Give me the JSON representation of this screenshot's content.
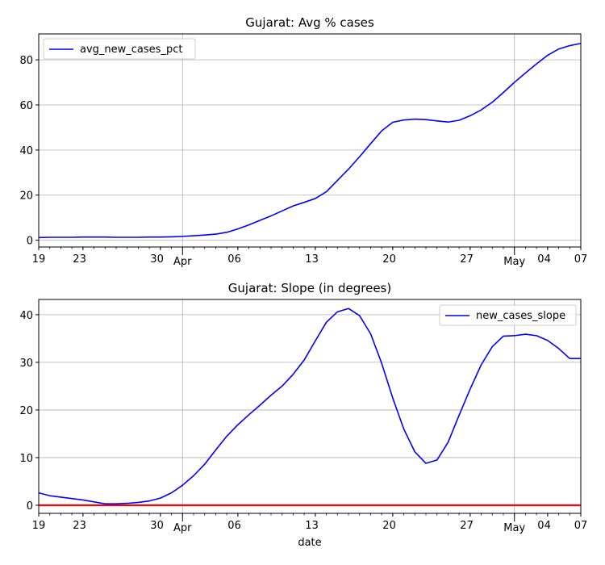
{
  "chart_data": [
    {
      "type": "line",
      "title": "Gujarat: Avg % cases",
      "xlabel": "",
      "ylabel": "",
      "x_range_day_index": [
        0,
        49
      ],
      "ylim": [
        -3,
        91.5
      ],
      "y_ticks": [
        0,
        20,
        40,
        60,
        80
      ],
      "x_ticks": [
        {
          "day": 0,
          "label": "19"
        },
        {
          "day": 4,
          "label": "23"
        },
        {
          "day": 11,
          "label": "30"
        },
        {
          "day": 13,
          "label": "Apr",
          "month": true
        },
        {
          "day": 18,
          "label": "06"
        },
        {
          "day": 25,
          "label": "13"
        },
        {
          "day": 32,
          "label": "20"
        },
        {
          "day": 39,
          "label": "27"
        },
        {
          "day": 43,
          "label": "May",
          "month": true
        },
        {
          "day": 46,
          "label": "04"
        },
        {
          "day": 49,
          "label": "07"
        }
      ],
      "grid": true,
      "legend_position": "top-left",
      "series": [
        {
          "name": "avg_new_cases_pct",
          "color": "#0000ff",
          "values": [
            1.2,
            1.3,
            1.3,
            1.3,
            1.4,
            1.4,
            1.4,
            1.3,
            1.3,
            1.3,
            1.4,
            1.4,
            1.5,
            1.7,
            2.0,
            2.3,
            2.7,
            3.5,
            5.0,
            6.8,
            8.8,
            10.8,
            13.0,
            15.2,
            16.8,
            18.5,
            21.5,
            26.5,
            31.5,
            37.0,
            42.8,
            48.5,
            52.3,
            53.3,
            53.7,
            53.5,
            52.9,
            52.4,
            53.2,
            55.2,
            57.8,
            61.2,
            65.5,
            70.0,
            74.2,
            78.2,
            82.0,
            84.8,
            86.3,
            87.3
          ]
        }
      ]
    },
    {
      "type": "line",
      "title": "Gujarat: Slope (in degrees)",
      "xlabel": "date",
      "ylabel": "",
      "x_range_day_index": [
        0,
        49
      ],
      "ylim": [
        -1.7,
        43.2
      ],
      "y_ticks": [
        0,
        10,
        20,
        30,
        40
      ],
      "x_ticks": [
        {
          "day": 0,
          "label": "19"
        },
        {
          "day": 4,
          "label": "23"
        },
        {
          "day": 11,
          "label": "30"
        },
        {
          "day": 13,
          "label": "Apr",
          "month": true
        },
        {
          "day": 18,
          "label": "06"
        },
        {
          "day": 25,
          "label": "13"
        },
        {
          "day": 32,
          "label": "20"
        },
        {
          "day": 39,
          "label": "27"
        },
        {
          "day": 43,
          "label": "May",
          "month": true
        },
        {
          "day": 46,
          "label": "04"
        },
        {
          "day": 49,
          "label": "07"
        }
      ],
      "grid": true,
      "legend_position": "top-right",
      "reference_line": {
        "y": 0,
        "color": "#ff0000"
      },
      "series": [
        {
          "name": "new_cases_slope",
          "color": "#0000ff",
          "values": [
            2.6,
            2.0,
            1.7,
            1.4,
            1.1,
            0.7,
            0.3,
            0.3,
            0.4,
            0.6,
            0.9,
            1.5,
            2.6,
            4.2,
            6.2,
            8.6,
            11.6,
            14.5,
            16.9,
            19.0,
            21.0,
            23.1,
            25.0,
            27.5,
            30.5,
            34.5,
            38.4,
            40.6,
            41.3,
            39.8,
            36.0,
            29.8,
            22.5,
            16.0,
            11.2,
            8.8,
            9.5,
            13.2,
            18.9,
            24.4,
            29.5,
            33.3,
            35.5,
            35.6,
            35.9,
            35.6,
            34.6,
            32.9,
            30.8,
            30.8
          ]
        }
      ]
    }
  ]
}
